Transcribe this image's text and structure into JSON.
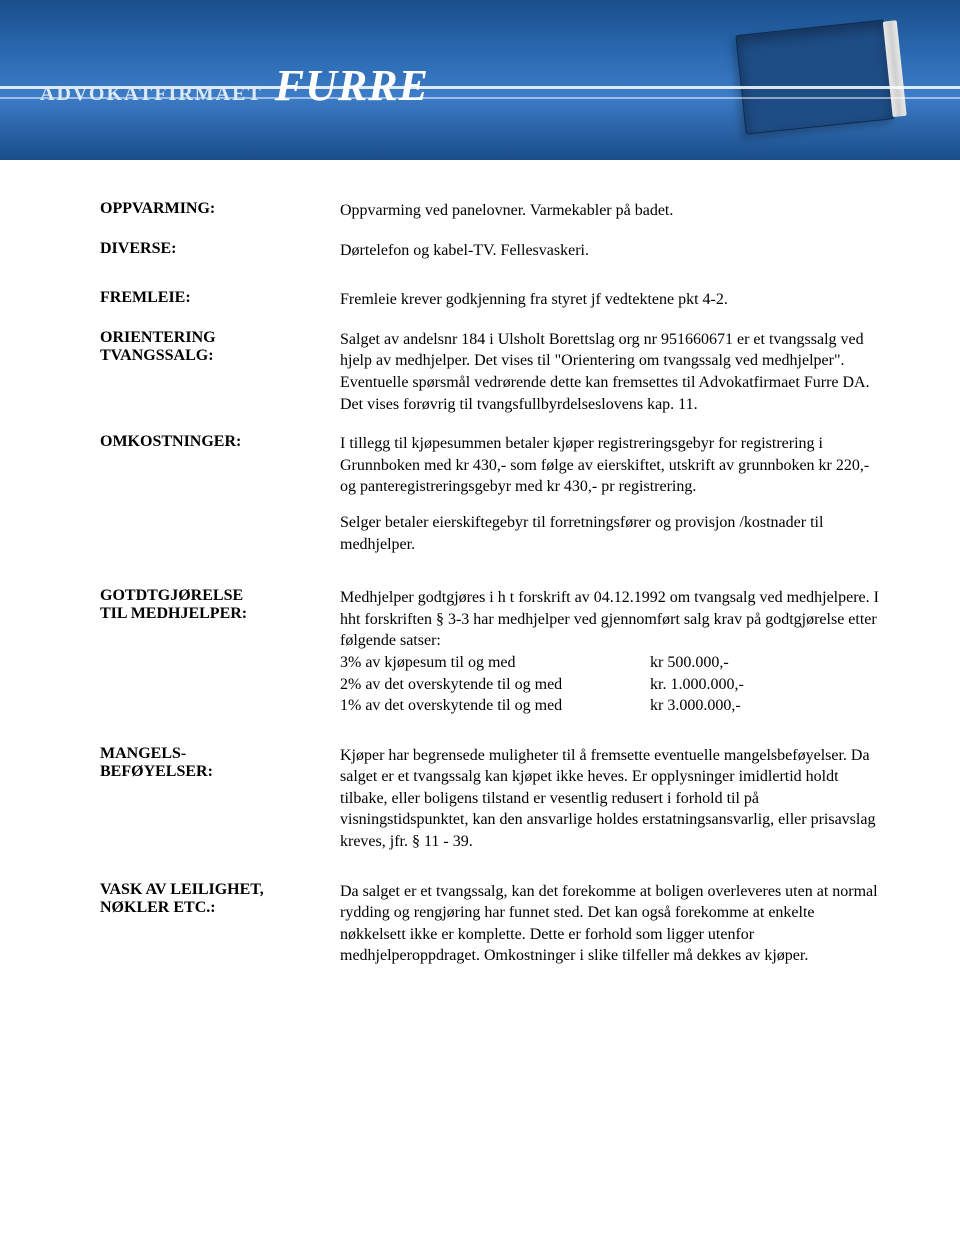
{
  "banner": {
    "firm_prefix": "ADVOKATFIRMAET",
    "firm_name": "FURRE",
    "bg_top": "#1a4e8a",
    "bg_mid": "#3d7cc7"
  },
  "sections": {
    "oppvarming": {
      "label": "OPPVARMING:",
      "text": "Oppvarming ved panelovner. Varmekabler på badet."
    },
    "diverse": {
      "label": "DIVERSE:",
      "text": "Dørtelefon og kabel-TV. Fellesvaskeri."
    },
    "fremleie": {
      "label": "FREMLEIE:",
      "text": "Fremleie krever godkjenning fra styret jf vedtektene pkt 4-2."
    },
    "orientering": {
      "label1": "ORIENTERING",
      "label2": "TVANGSSALG:",
      "text": "Salget av andelsnr 184 i Ulsholt Borettslag org nr 951660671 er et tvangssalg ved hjelp av medhjelper. Det vises til \"Orientering om tvangssalg ved medhjelper\". Eventuelle spørsmål vedrørende dette kan fremsettes til Advokatfirmaet Furre DA. Det vises forøvrig til tvangsfullbyrdelseslovens kap. 11."
    },
    "omkostninger": {
      "label": "OMKOSTNINGER:",
      "p1": "I tillegg til kjøpesummen betaler kjøper registreringsgebyr for registrering i Grunnboken med kr  430,-  som følge av eierskiftet, utskrift av grunnboken kr 220,-  og panteregistreringsgebyr  med kr 430,- pr registrering.",
      "p2": "Selger betaler eierskiftegebyr til forretningsfører og provisjon /kostnader til medhjelper."
    },
    "godtgjorelse": {
      "label1": "GOTDTGJØRELSE",
      "label2": "TIL MEDHJELPER:",
      "intro": "Medhjelper godtgjøres i h t forskrift av 04.12.1992 om tvangsalg ved medhjelpere. I hht forskriften § 3-3 har medhjelper ved gjennomført salg krav på godtgjørelse etter følgende satser:",
      "rates": [
        {
          "desc": "3% av kjøpesum til og med",
          "amount": "kr    500.000,-"
        },
        {
          "desc": "2% av det overskytende til og med",
          "amount": "kr. 1.000.000,-"
        },
        {
          "desc": "1% av det overskytende til og med",
          "amount": "kr  3.000.000,-"
        }
      ]
    },
    "mangels": {
      "label1": "MANGELS-",
      "label2": "BEFØYELSER:",
      "text": "Kjøper har begrensede muligheter til å fremsette eventuelle mangelsbeføyelser.  Da salget er et tvangssalg kan kjøpet ikke heves.  Er opplysninger imidlertid holdt tilbake, eller boligens tilstand er vesentlig redusert i forhold til på visningstidspunktet, kan den ansvarlige holdes erstatningsansvarlig, eller prisavslag kreves, jfr. § 11 - 39."
    },
    "vask": {
      "label1": "VASK AV LEILIGHET,",
      "label2": "NØKLER ETC.:",
      "text": "Da salget er et tvangssalg, kan det forekomme at boligen overleveres uten at normal rydding og rengjøring har funnet sted.  Det kan også forekomme at enkelte nøkkelsett ikke er komplette.  Dette er forhold som ligger utenfor medhjelperoppdraget.  Omkostninger i slike tilfeller må dekkes av kjøper."
    }
  }
}
